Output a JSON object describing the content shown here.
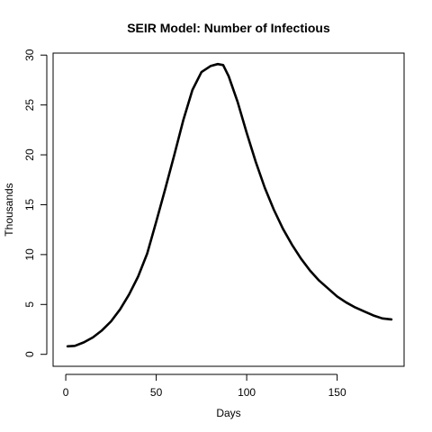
{
  "chart_data": {
    "type": "line",
    "title": "SEIR Model: Number of Infectious",
    "xlabel": "Days",
    "ylabel": "Thousands",
    "xlim": [
      -7,
      187
    ],
    "ylim": [
      -1.2,
      30.2
    ],
    "xticks": [
      0,
      50,
      100,
      150
    ],
    "yticks": [
      0,
      5,
      10,
      15,
      20,
      25,
      30
    ],
    "grid": false,
    "series": [
      {
        "color": "#000000",
        "x": [
          1,
          5,
          10,
          15,
          20,
          25,
          30,
          35,
          40,
          45,
          50,
          55,
          60,
          65,
          70,
          75,
          80,
          84,
          87,
          90,
          95,
          100,
          105,
          110,
          115,
          120,
          125,
          130,
          135,
          140,
          145,
          150,
          155,
          160,
          165,
          170,
          175,
          180
        ],
        "y": [
          0.8,
          0.85,
          1.2,
          1.7,
          2.4,
          3.3,
          4.5,
          6.0,
          7.8,
          10.1,
          13.3,
          16.6,
          20.0,
          23.5,
          26.5,
          28.3,
          28.9,
          29.1,
          29.0,
          27.9,
          25.3,
          22.2,
          19.3,
          16.7,
          14.5,
          12.6,
          11.0,
          9.6,
          8.4,
          7.4,
          6.6,
          5.8,
          5.2,
          4.7,
          4.3,
          3.9,
          3.6,
          3.5
        ]
      }
    ]
  }
}
